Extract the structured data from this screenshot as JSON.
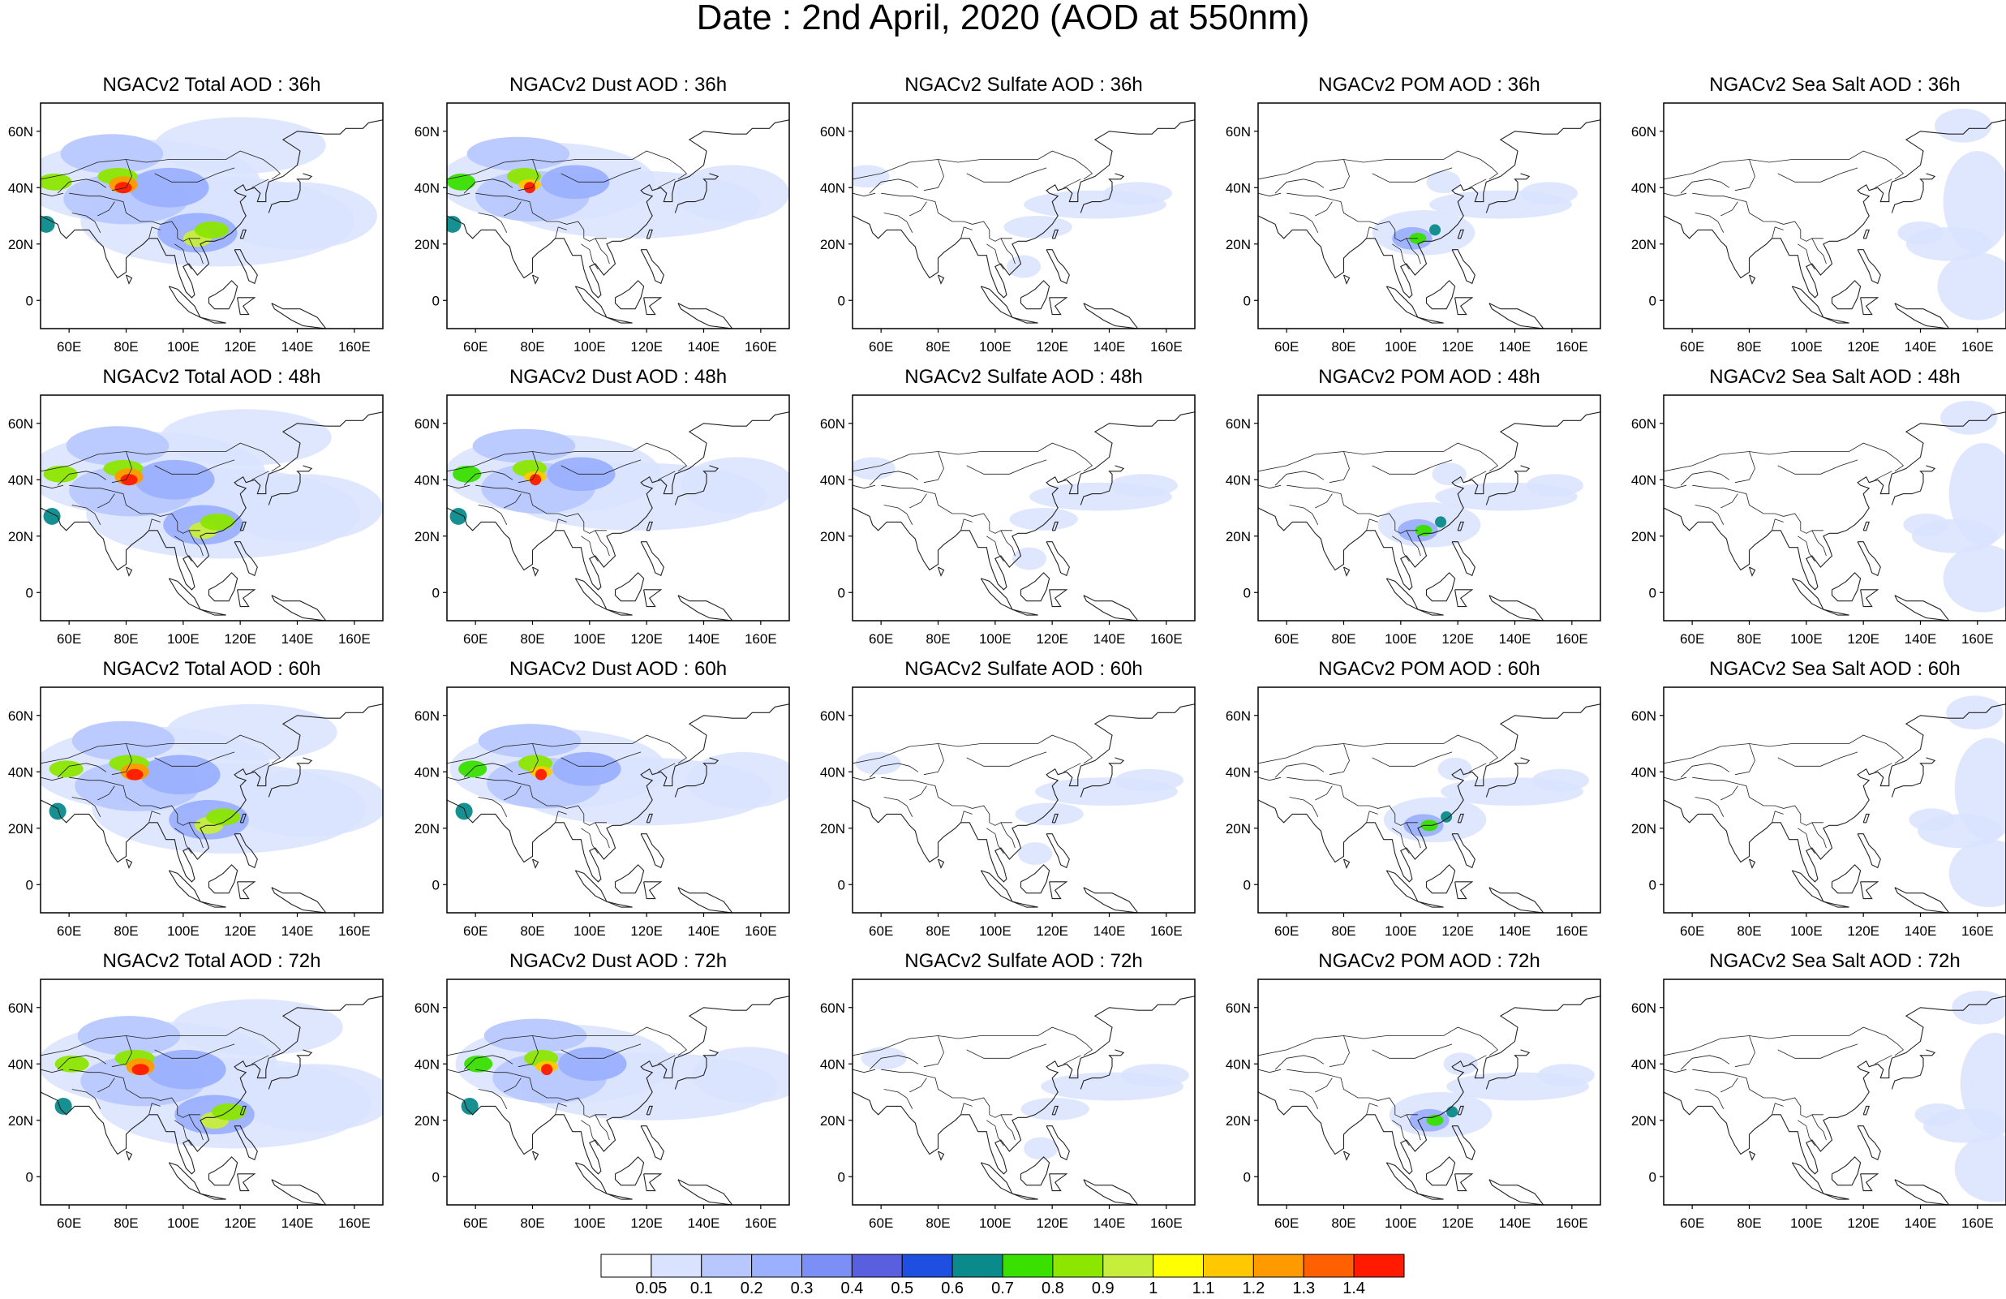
{
  "title": "Date : 2nd April, 2020 (AOD at 550nm)",
  "latitude_labels": [
    "60N",
    "40N",
    "20N",
    "0"
  ],
  "latitude_values": [
    60,
    40,
    20,
    0
  ],
  "longitude_labels": [
    "60E",
    "80E",
    "100E",
    "120E",
    "140E",
    "160E"
  ],
  "longitude_values": [
    60,
    80,
    100,
    120,
    140,
    160
  ],
  "map_extent": {
    "lon": [
      50,
      170
    ],
    "lat": [
      -10,
      70
    ]
  },
  "rows": [
    "36h",
    "48h",
    "60h",
    "72h"
  ],
  "columns": [
    "Total",
    "Dust",
    "Sulfate",
    "POM",
    "Sea Salt"
  ],
  "panels": [
    [
      {
        "title": "NGACv2 Total AOD : 36h",
        "product": "total"
      },
      {
        "title": "NGACv2 Dust AOD : 36h",
        "product": "dust"
      },
      {
        "title": "NGACv2 Sulfate AOD : 36h",
        "product": "sulfate"
      },
      {
        "title": "NGACv2 POM AOD : 36h",
        "product": "pom"
      },
      {
        "title": "NGACv2 Sea Salt AOD : 36h",
        "product": "seasalt"
      }
    ],
    [
      {
        "title": "NGACv2 Total AOD : 48h",
        "product": "total"
      },
      {
        "title": "NGACv2 Dust AOD : 48h",
        "product": "dust"
      },
      {
        "title": "NGACv2 Sulfate AOD : 48h",
        "product": "sulfate"
      },
      {
        "title": "NGACv2 POM AOD : 48h",
        "product": "pom"
      },
      {
        "title": "NGACv2 Sea Salt AOD : 48h",
        "product": "seasalt"
      }
    ],
    [
      {
        "title": "NGACv2 Total AOD : 60h",
        "product": "total"
      },
      {
        "title": "NGACv2 Dust AOD : 60h",
        "product": "dust"
      },
      {
        "title": "NGACv2 Sulfate AOD : 60h",
        "product": "sulfate"
      },
      {
        "title": "NGACv2 POM AOD : 60h",
        "product": "pom"
      },
      {
        "title": "NGACv2 Sea Salt AOD : 60h",
        "product": "seasalt"
      }
    ],
    [
      {
        "title": "NGACv2 Total AOD : 72h",
        "product": "total"
      },
      {
        "title": "NGACv2 Dust AOD : 72h",
        "product": "dust"
      },
      {
        "title": "NGACv2 Sulfate AOD : 72h",
        "product": "sulfate"
      },
      {
        "title": "NGACv2 POM AOD : 72h",
        "product": "pom"
      },
      {
        "title": "NGACv2 Sea Salt  AOD : 72h",
        "product": "seasalt"
      }
    ]
  ],
  "colorbar": {
    "labels": [
      "0.05",
      "0.1",
      "0.2",
      "0.3",
      "0.4",
      "0.5",
      "0.6",
      "0.7",
      "0.8",
      "0.9",
      "1",
      "1.1",
      "1.2",
      "1.3",
      "1.4"
    ],
    "colors": [
      "#ffffff",
      "#d9e3ff",
      "#b8c8ff",
      "#9bb0ff",
      "#7c8ff7",
      "#5a5fe0",
      "#1e4fe0",
      "#0a8a8a",
      "#39e000",
      "#8ce600",
      "#c8ee3c",
      "#ffff00",
      "#ffc800",
      "#ff9a00",
      "#ff6000",
      "#ff1a00"
    ]
  },
  "palette": {
    "coast": "#222222",
    "frame": "#000000"
  }
}
